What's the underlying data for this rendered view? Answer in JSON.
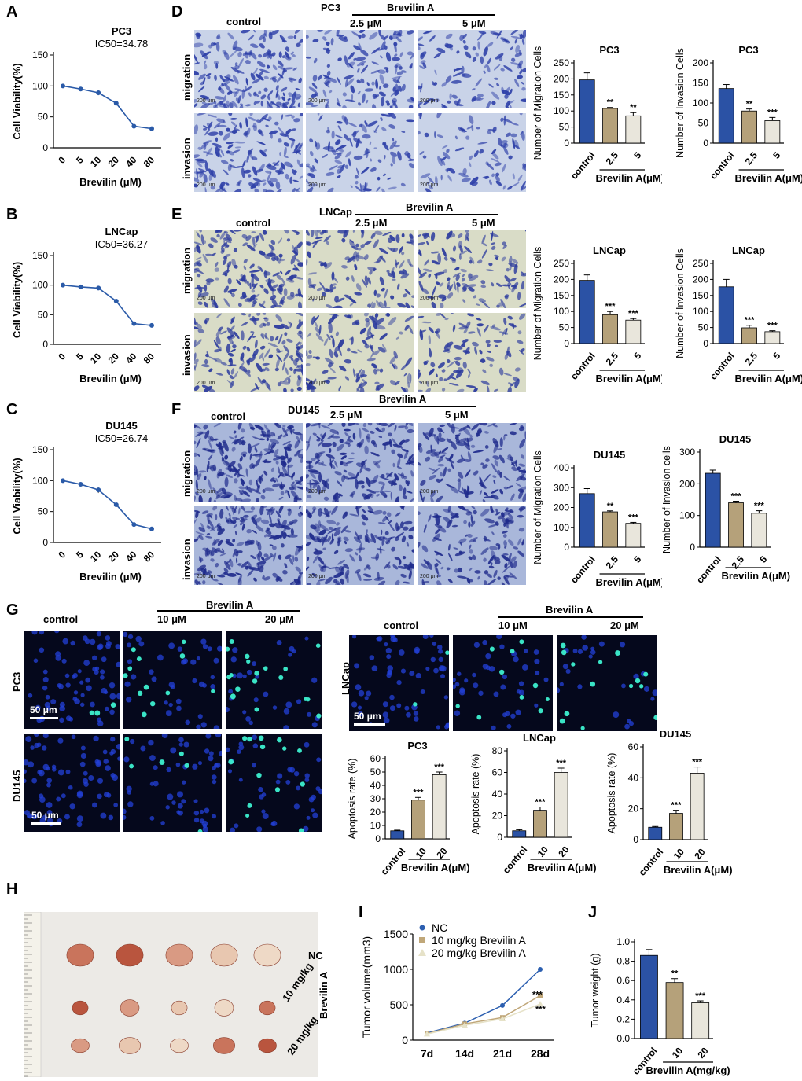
{
  "panels": {
    "A": "A",
    "B": "B",
    "C": "C",
    "D": "D",
    "E": "E",
    "F": "F",
    "G": "G",
    "H": "H",
    "I": "I",
    "J": "J"
  },
  "viability": {
    "ylabel": "Cell Viability(%)",
    "xlabel": "Brevilin (μM)",
    "xticks": [
      "0",
      "5",
      "10",
      "20",
      "40",
      "80"
    ],
    "yticks": [
      "0",
      "50",
      "100",
      "150"
    ]
  },
  "transwell": {
    "treatment": "Brevilin A",
    "conditions": [
      "control",
      "2.5 μM",
      "5 μM"
    ],
    "rows": [
      "migration",
      "invasion"
    ],
    "scale": "200 μm",
    "cells": {
      "D": "PC3",
      "E": "LNCap",
      "F": "DU145"
    }
  },
  "apoptosis_images": {
    "treatment": "Brevilin A",
    "conditions": [
      "control",
      "10 μM",
      "20 μM"
    ],
    "rows_left": [
      "PC3",
      "DU145"
    ],
    "row_right": "LNCap",
    "scale": "50 μm"
  },
  "tumor_photo": {
    "labels": [
      "NC",
      "10 mg/kg",
      "20 mg/kg"
    ],
    "group": "Brevilin A"
  },
  "chart_data": [
    {
      "id": "A",
      "type": "line",
      "title": "PC3",
      "subtitle": "IC50=34.78",
      "xlabel": "Brevilin (μM)",
      "ylabel": "Cell Viability(%)",
      "categories": [
        "0",
        "5",
        "10",
        "20",
        "40",
        "80"
      ],
      "values": [
        100,
        95,
        89,
        72,
        35,
        31
      ],
      "errors": [
        1,
        2,
        4,
        3,
        1,
        1
      ],
      "ylim": [
        0,
        150
      ]
    },
    {
      "id": "B",
      "type": "line",
      "title": "LNCap",
      "subtitle": "IC50=36.27",
      "xlabel": "Brevilin (μM)",
      "ylabel": "Cell Viability(%)",
      "categories": [
        "0",
        "5",
        "10",
        "20",
        "40",
        "80"
      ],
      "values": [
        100,
        97,
        95,
        73,
        35,
        32
      ],
      "errors": [
        1,
        1,
        2,
        3,
        1,
        1
      ],
      "ylim": [
        0,
        150
      ]
    },
    {
      "id": "C",
      "type": "line",
      "title": "DU145",
      "subtitle": "IC50=26.74",
      "xlabel": "Brevilin (μM)",
      "ylabel": "Cell Viability(%)",
      "categories": [
        "0",
        "5",
        "10",
        "20",
        "40",
        "80"
      ],
      "values": [
        100,
        94,
        85,
        61,
        29,
        22
      ],
      "errors": [
        1,
        3,
        5,
        2,
        1,
        1
      ],
      "ylim": [
        0,
        150
      ]
    },
    {
      "id": "D-mig",
      "type": "bar",
      "title": "PC3",
      "ylabel": "Number of Migration Cells",
      "xgroup": "Brevilin A(μM)",
      "categories": [
        "control",
        "2.5",
        "5"
      ],
      "values": [
        197,
        108,
        85
      ],
      "errors": [
        22,
        3,
        10
      ],
      "sig": [
        "",
        "**",
        "**"
      ],
      "ylim": [
        0,
        250
      ],
      "yticks": [
        0,
        50,
        100,
        150,
        200,
        250
      ]
    },
    {
      "id": "D-inv",
      "type": "bar",
      "title": "PC3",
      "ylabel": "Number of Invasion Cells",
      "xgroup": "Brevilin A(μM)",
      "categories": [
        "control",
        "2.5",
        "5"
      ],
      "values": [
        136,
        80,
        56
      ],
      "errors": [
        10,
        5,
        8
      ],
      "sig": [
        "",
        "**",
        "***"
      ],
      "ylim": [
        0,
        200
      ],
      "yticks": [
        0,
        50,
        100,
        150,
        200
      ]
    },
    {
      "id": "E-mig",
      "type": "bar",
      "title": "LNCap",
      "ylabel": "Number of Migration Cells",
      "xgroup": "Brevilin A(μM)",
      "categories": [
        "control",
        "2.5",
        "5"
      ],
      "values": [
        197,
        90,
        73
      ],
      "errors": [
        17,
        10,
        5
      ],
      "sig": [
        "",
        "***",
        "***"
      ],
      "ylim": [
        0,
        250
      ],
      "yticks": [
        0,
        50,
        100,
        150,
        200,
        250
      ]
    },
    {
      "id": "E-inv",
      "type": "bar",
      "title": "LNCap",
      "ylabel": "Number of Invasion Cells",
      "xgroup": "Brevilin A(μM)",
      "categories": [
        "control",
        "2.5",
        "5"
      ],
      "values": [
        177,
        49,
        37
      ],
      "errors": [
        23,
        8,
        3
      ],
      "sig": [
        "",
        "***",
        "***"
      ],
      "ylim": [
        0,
        250
      ],
      "yticks": [
        0,
        50,
        100,
        150,
        200,
        250
      ]
    },
    {
      "id": "F-mig",
      "type": "bar",
      "title": "DU145",
      "ylabel": "Number of Migration Cells",
      "xgroup": "Brevilin A(μM)",
      "categories": [
        "control",
        "2.5",
        "5"
      ],
      "values": [
        270,
        178,
        120
      ],
      "errors": [
        25,
        5,
        5
      ],
      "sig": [
        "",
        "**",
        "***"
      ],
      "ylim": [
        0,
        400
      ],
      "yticks": [
        0,
        100,
        200,
        300,
        400
      ]
    },
    {
      "id": "F-inv",
      "type": "bar",
      "title": "DU145",
      "ylabel": "Number of Invasion cells",
      "xgroup": "Brevilin A(μM)",
      "categories": [
        "control",
        "2.5",
        "5"
      ],
      "values": [
        233,
        140,
        107
      ],
      "errors": [
        10,
        5,
        8
      ],
      "sig": [
        "",
        "***",
        "***"
      ],
      "ylim": [
        0,
        300
      ],
      "yticks": [
        0,
        100,
        200,
        300
      ]
    },
    {
      "id": "G-PC3",
      "type": "bar",
      "title": "PC3",
      "ylabel": "Apoptosis rate (%)",
      "xgroup": "Brevilin A(μM)",
      "categories": [
        "control",
        "10",
        "20"
      ],
      "values": [
        6,
        29,
        48
      ],
      "errors": [
        0.5,
        2,
        2
      ],
      "sig": [
        "",
        "***",
        "***"
      ],
      "ylim": [
        0,
        60
      ],
      "yticks": [
        0,
        10,
        20,
        30,
        40,
        50,
        60
      ]
    },
    {
      "id": "G-LNCap",
      "type": "bar",
      "title": "LNCap",
      "ylabel": "Apoptosis rate (%)",
      "xgroup": "Brevilin A(μM)",
      "categories": [
        "control",
        "10",
        "20"
      ],
      "values": [
        6,
        25,
        60
      ],
      "errors": [
        1,
        3,
        4
      ],
      "sig": [
        "",
        "***",
        "***"
      ],
      "ylim": [
        0,
        80
      ],
      "yticks": [
        0,
        20,
        40,
        60,
        80
      ]
    },
    {
      "id": "G-DU145",
      "type": "bar",
      "title": "DU145",
      "ylabel": "Apoptosis rate (%)",
      "xgroup": "Brevilin A(μM)",
      "categories": [
        "control",
        "10",
        "20"
      ],
      "values": [
        8,
        17,
        43
      ],
      "errors": [
        0.5,
        2,
        4
      ],
      "sig": [
        "",
        "***",
        "***"
      ],
      "ylim": [
        0,
        60
      ],
      "yticks": [
        0,
        20,
        40,
        60
      ]
    },
    {
      "id": "I",
      "type": "line",
      "xlabel": "",
      "ylabel": "Tumor volume(mm3)",
      "categories": [
        "7d",
        "14d",
        "21d",
        "28d"
      ],
      "series": [
        {
          "name": "NC",
          "values": [
            100,
            240,
            490,
            1000
          ]
        },
        {
          "name": "10 mg/kg Brevilin A",
          "values": [
            90,
            230,
            320,
            630
          ]
        },
        {
          "name": "20 mg/kg Brevilin A",
          "values": [
            85,
            210,
            300,
            510
          ]
        }
      ],
      "sig": [
        "***",
        "***"
      ],
      "ylim": [
        0,
        1500
      ],
      "yticks": [
        0,
        500,
        1000,
        1500
      ]
    },
    {
      "id": "J",
      "type": "bar",
      "ylabel": "Tumor weight (g)",
      "xgroup": "Brevilin A(mg/kg)",
      "categories": [
        "control",
        "10",
        "20"
      ],
      "values": [
        0.86,
        0.58,
        0.37
      ],
      "errors": [
        0.06,
        0.04,
        0.02
      ],
      "sig": [
        "",
        "**",
        "***"
      ],
      "ylim": [
        0,
        1.0
      ],
      "yticks": [
        0.0,
        0.2,
        0.4,
        0.6,
        0.8,
        1.0
      ]
    }
  ]
}
